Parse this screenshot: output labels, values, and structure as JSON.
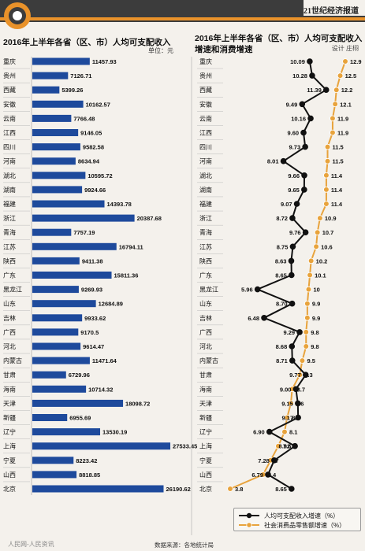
{
  "header": {
    "paper": "21世纪经济报道",
    "designer": "设计 庄栩"
  },
  "footer": {
    "source": "数据来源：各地统计局",
    "watermark": "人民网-人民资讯"
  },
  "colors": {
    "bar": "#1e4a9c",
    "income_line": "#111111",
    "consumption_line": "#e8a33c",
    "header_dark": "#3c3c3c",
    "header_orange": "#e9922a"
  },
  "chart_data": [
    {
      "type": "bar",
      "orientation": "horizontal",
      "title": "2016年上半年各省（区、市）人均可支配收入",
      "unit": "单位：元",
      "categories": [
        "重庆",
        "贵州",
        "西藏",
        "安徽",
        "云南",
        "江西",
        "四川",
        "河南",
        "湖北",
        "湖南",
        "福建",
        "浙江",
        "青海",
        "江苏",
        "陕西",
        "广东",
        "黑龙江",
        "山东",
        "吉林",
        "广西",
        "河北",
        "内蒙古",
        "甘肃",
        "海南",
        "天津",
        "新疆",
        "辽宁",
        "上海",
        "宁夏",
        "山西",
        "北京"
      ],
      "values": [
        11457.93,
        7126.71,
        5399.26,
        10162.57,
        7766.48,
        9146.05,
        9582.58,
        8634.94,
        10595.72,
        9924.66,
        14393.78,
        20387.68,
        7757.19,
        16794.11,
        9411.38,
        15811.36,
        9269.93,
        12684.89,
        9933.62,
        9170.5,
        9614.47,
        11471.64,
        6729.96,
        10714.32,
        18098.72,
        6955.69,
        13530.19,
        27533.45,
        8223.42,
        8818.85,
        26190.62
      ],
      "value_labels": [
        "11457.93",
        "7126.71",
        "5399.26",
        "10162.57",
        "7766.48",
        "9146.05",
        "9582.58",
        "8634.94",
        "10595.72",
        "9924.66",
        "14393.78",
        "20387.68",
        "7757.19",
        "16794.11",
        "9411.38",
        "15811.36",
        "9269.93",
        "12684.89",
        "9933.62",
        "9170.5",
        "9614.47",
        "11471.64",
        "6729.96",
        "10714.32",
        "18098.72",
        "6955.69",
        "13530.19",
        "27533.45",
        "8223.42",
        "8818.85",
        "26190.62"
      ],
      "xlim": [
        0,
        28000
      ]
    },
    {
      "type": "line",
      "title": "2016年上半年各省（区、市）人均可支配收入增速和消费增速",
      "categories": [
        "重庆",
        "贵州",
        "西藏",
        "安徽",
        "云南",
        "江西",
        "四川",
        "河南",
        "湖北",
        "湖南",
        "福建",
        "浙江",
        "青海",
        "江苏",
        "陕西",
        "广东",
        "黑龙江",
        "山东",
        "吉林",
        "广西",
        "河北",
        "内蒙古",
        "甘肃",
        "海南",
        "天津",
        "新疆",
        "辽宁",
        "上海",
        "宁夏",
        "山西",
        "北京"
      ],
      "series": [
        {
          "name": "人均可支配收入增速（%）",
          "values": [
            10.09,
            10.28,
            11.39,
            9.49,
            10.16,
            9.6,
            9.73,
            8.01,
            9.66,
            9.65,
            9.07,
            8.72,
            9.76,
            8.75,
            8.63,
            8.65,
            5.96,
            8.7,
            6.48,
            9.29,
            8.68,
            8.71,
            9.77,
            9.0,
            9.15,
            9.17,
            6.9,
            8.92,
            7.28,
            6.79,
            8.65
          ],
          "labels": [
            "10.09",
            "10.28",
            "11.39",
            "9.49",
            "10.16",
            "9.60",
            "9.73",
            "8.01",
            "9.66",
            "9.65",
            "9.07",
            "8.72",
            "9.76",
            "8.75",
            "8.63",
            "8.65",
            "5.96",
            "8.70",
            "6.48",
            "9.29",
            "8.68",
            "8.71",
            "9.77",
            "9.00",
            "9.15",
            "9.17",
            "6.90",
            "8.92",
            "7.28",
            "6.79",
            "8.65"
          ]
        },
        {
          "name": "社会消费品零售额增速（%）",
          "values": [
            12.9,
            12.5,
            12.2,
            12.1,
            11.9,
            11.9,
            11.5,
            11.5,
            11.4,
            11.4,
            11.4,
            10.9,
            10.7,
            10.6,
            10.2,
            10.1,
            10,
            9.9,
            9.9,
            9.8,
            9.8,
            9.5,
            9.3,
            8.7,
            8.6,
            8.3,
            8.1,
            7.6,
            7,
            6.4,
            3.8
          ],
          "labels": [
            "12.9",
            "12.5",
            "12.2",
            "12.1",
            "11.9",
            "11.9",
            "11.5",
            "11.5",
            "11.4",
            "11.4",
            "11.4",
            "10.9",
            "10.7",
            "10.6",
            "10.2",
            "10.1",
            "10",
            "9.9",
            "9.9",
            "9.8",
            "9.8",
            "9.5",
            "9.3",
            "8.7",
            "8.6",
            "8.3",
            "8.1",
            "7.6",
            "7",
            "6.4",
            "3.8"
          ]
        }
      ],
      "xlim": [
        3.3,
        13.4
      ]
    }
  ]
}
